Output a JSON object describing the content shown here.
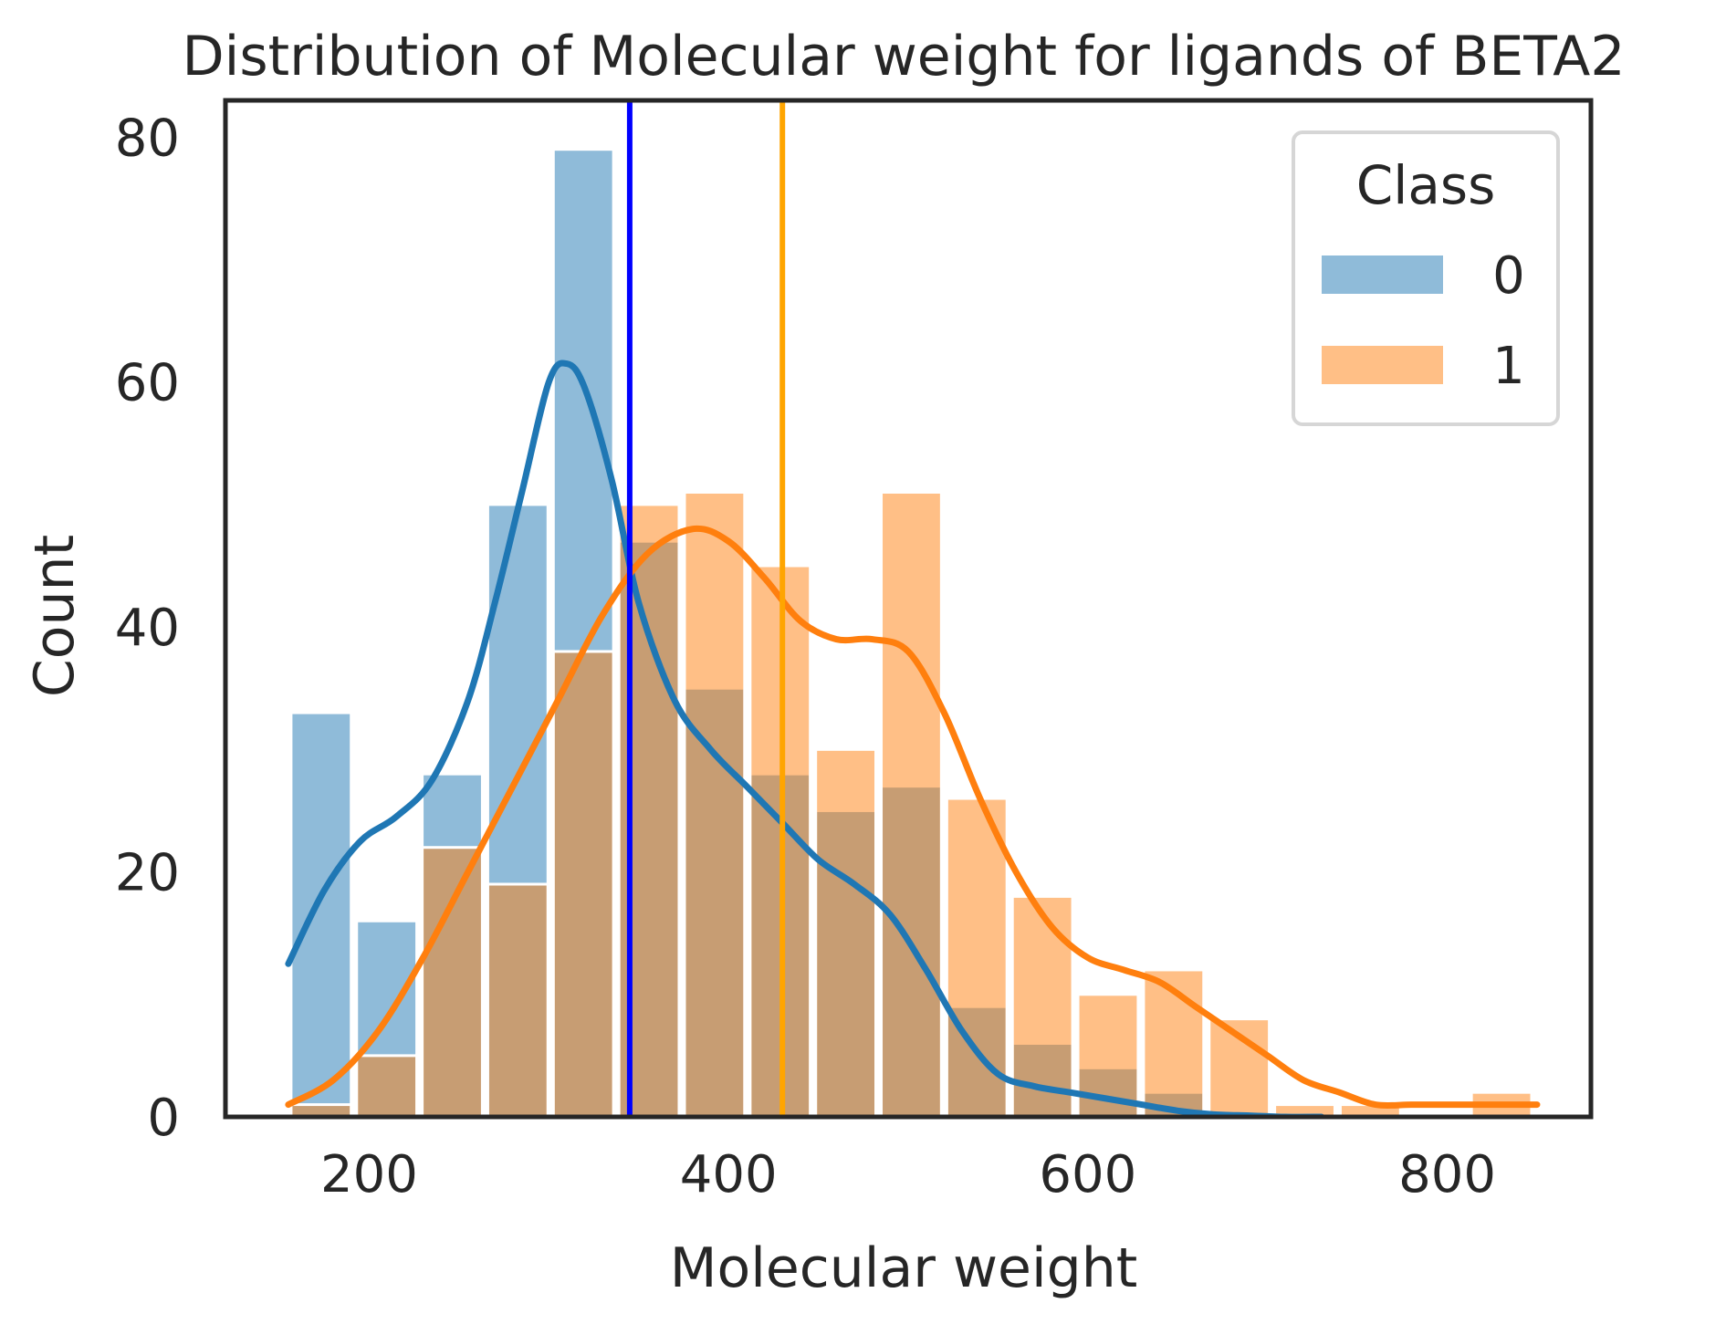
{
  "chart_data": {
    "type": "histogram",
    "title": "Distribution of Molecular weight for ligands of BETA2",
    "xlabel": "Molecular weight",
    "ylabel": "Count",
    "xlim": [
      120,
      880
    ],
    "ylim": [
      0,
      83
    ],
    "xticks": [
      200,
      400,
      600,
      800
    ],
    "yticks": [
      0,
      20,
      40,
      60,
      80
    ],
    "bin_edges": [
      155,
      191.5,
      228,
      264.5,
      301,
      337.5,
      374,
      410.5,
      447,
      483.5,
      520,
      556.5,
      593,
      629.5,
      666,
      702.5,
      739,
      775.5,
      812,
      848.5
    ],
    "grid": false,
    "legend": {
      "title": "Class",
      "placement": "top-right",
      "entries": [
        "0",
        "1"
      ]
    },
    "series": [
      {
        "name": "0",
        "color": "#1f77b4",
        "bar_color": "#8fb8d9",
        "counts": [
          33,
          16,
          28,
          50,
          79,
          47,
          35,
          28,
          25,
          27,
          9,
          6,
          4,
          2,
          0,
          0,
          0,
          0,
          0
        ],
        "kde": {
          "x": [
            155,
            175,
            195,
            215,
            235,
            255,
            270,
            285,
            300,
            310,
            320,
            335,
            350,
            370,
            390,
            410,
            430,
            450,
            470,
            490,
            510,
            530,
            550,
            570,
            590,
            610,
            630,
            650,
            670,
            690,
            710,
            730
          ],
          "y": [
            12.5,
            18.5,
            22.5,
            24.5,
            27.5,
            34,
            42,
            51,
            60,
            61.5,
            59.5,
            52,
            42,
            34,
            30,
            27,
            24,
            21,
            19,
            16.5,
            12,
            7,
            3.5,
            2.5,
            2,
            1.5,
            1,
            0.5,
            0.2,
            0.1,
            0,
            0
          ]
        }
      },
      {
        "name": "1",
        "color": "#ff7f0e",
        "bar_color": "#ffbe86",
        "counts": [
          1,
          5,
          22,
          19,
          38,
          50,
          51,
          45,
          30,
          51,
          26,
          18,
          10,
          12,
          8,
          1,
          1,
          0,
          2
        ],
        "kde": {
          "x": [
            155,
            180,
            205,
            230,
            255,
            280,
            305,
            330,
            355,
            380,
            400,
            420,
            440,
            460,
            480,
            500,
            520,
            540,
            560,
            580,
            600,
            620,
            640,
            660,
            680,
            700,
            720,
            740,
            760,
            780,
            800,
            820,
            850
          ],
          "y": [
            1,
            3,
            7,
            13,
            20,
            27,
            34,
            41,
            46,
            48,
            47,
            44,
            40.5,
            39,
            39,
            38,
            33,
            26,
            20,
            15.5,
            13,
            12,
            11,
            9,
            7,
            5,
            3,
            2,
            1,
            1,
            1,
            1,
            1
          ]
        }
      }
    ],
    "vlines": [
      {
        "x": 345,
        "color": "#0000ff"
      },
      {
        "x": 430,
        "color": "#ffa500"
      }
    ]
  }
}
